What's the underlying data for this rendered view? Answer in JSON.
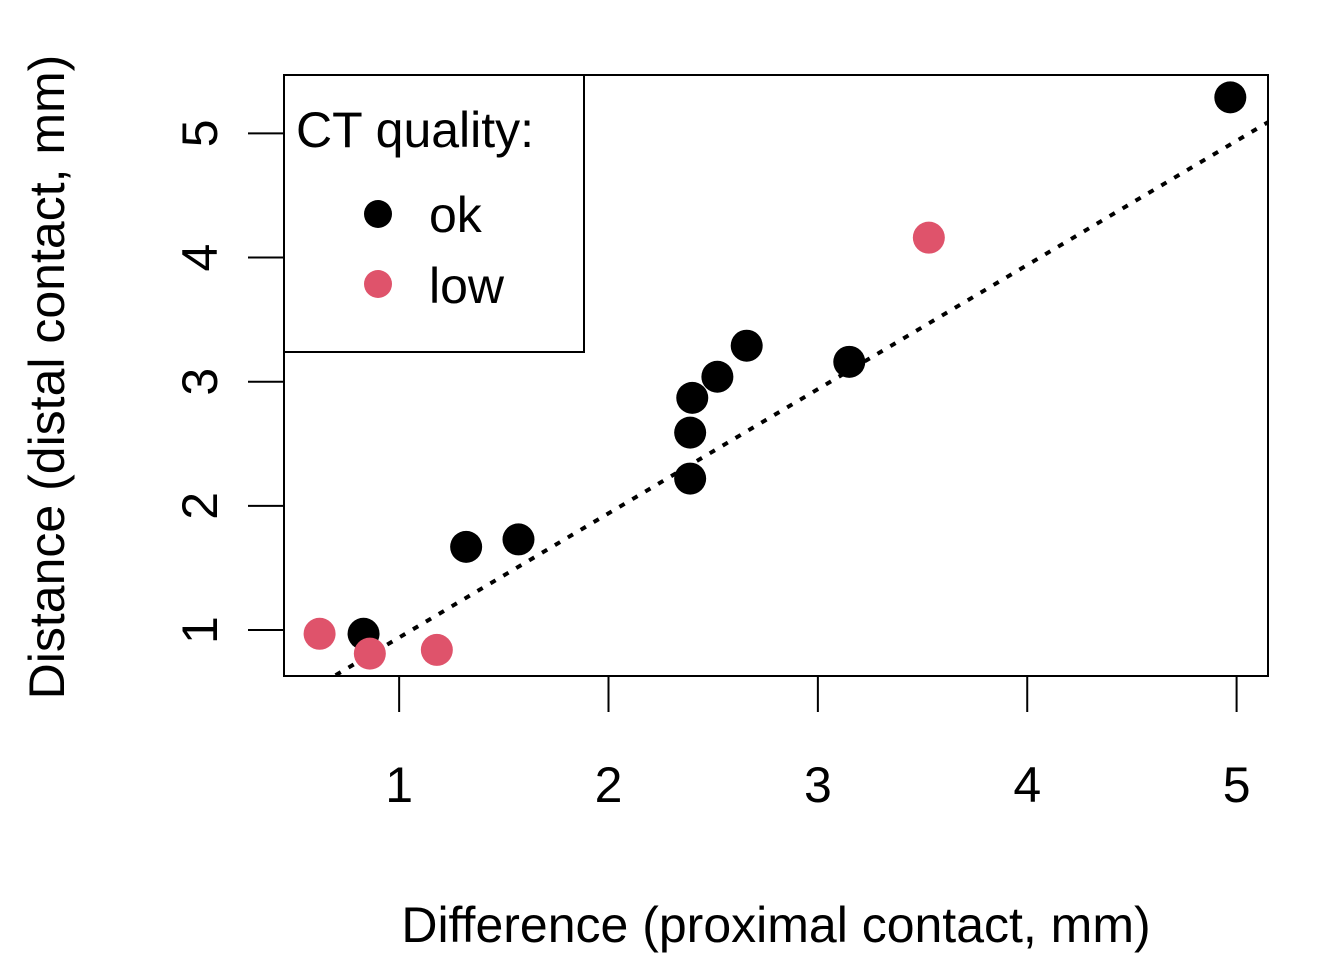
{
  "chart_data": {
    "type": "scatter",
    "title": "",
    "xlabel": "Difference (proximal contact, mm)",
    "ylabel": "Distance (distal contact, mm)",
    "xlim": [
      0.45,
      5.15
    ],
    "ylim": [
      0.63,
      5.47
    ],
    "x_ticks": [
      1,
      2,
      3,
      4,
      5
    ],
    "y_ticks": [
      1,
      2,
      3,
      4,
      5
    ],
    "grid": false,
    "legend": {
      "title": "CT quality:",
      "placement": "top-left",
      "entries": [
        {
          "label": "ok",
          "color": "#000000"
        },
        {
          "label": "low",
          "color": "#DF536B"
        }
      ]
    },
    "series": [
      {
        "name": "ok",
        "color": "#000000",
        "points": [
          {
            "x": 0.83,
            "y": 0.97
          },
          {
            "x": 1.32,
            "y": 1.67
          },
          {
            "x": 1.57,
            "y": 1.73
          },
          {
            "x": 2.39,
            "y": 2.22
          },
          {
            "x": 2.39,
            "y": 2.59
          },
          {
            "x": 2.4,
            "y": 2.87
          },
          {
            "x": 2.52,
            "y": 3.04
          },
          {
            "x": 2.66,
            "y": 3.29
          },
          {
            "x": 3.15,
            "y": 3.16
          },
          {
            "x": 4.97,
            "y": 5.29
          }
        ]
      },
      {
        "name": "low",
        "color": "#DF536B",
        "points": [
          {
            "x": 0.62,
            "y": 0.97
          },
          {
            "x": 0.86,
            "y": 0.81
          },
          {
            "x": 1.18,
            "y": 0.84
          },
          {
            "x": 3.53,
            "y": 4.16
          }
        ]
      }
    ],
    "fit_line": {
      "style": "dotted",
      "color": "#000000",
      "intercept": -0.06,
      "slope": 1.0
    }
  }
}
